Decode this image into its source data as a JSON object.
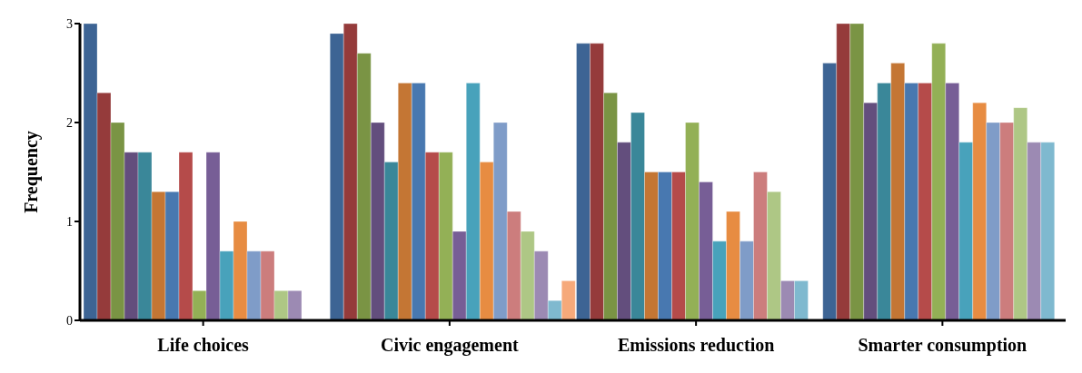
{
  "chart_data": {
    "type": "bar",
    "ylabel": "Frequency",
    "categories": [
      "Life choices",
      "Civic engagement",
      "Emissions reduction",
      "Smarter consumption"
    ],
    "ylim": [
      0,
      3
    ],
    "yticks": [
      0,
      1,
      2,
      3
    ],
    "series": [
      {
        "color": "#3d6494",
        "values": [
          3,
          2.9,
          2.8,
          2.6
        ]
      },
      {
        "color": "#953b3b",
        "values": [
          2.3,
          3,
          2.8,
          3
        ]
      },
      {
        "color": "#7a9444",
        "values": [
          2,
          2.7,
          2.3,
          3
        ]
      },
      {
        "color": "#634e7d",
        "values": [
          1.7,
          2,
          1.8,
          2.2
        ]
      },
      {
        "color": "#3a8799",
        "values": [
          1.7,
          1.6,
          2.1,
          2.4
        ]
      },
      {
        "color": "#c47634",
        "values": [
          1.3,
          2.4,
          1.5,
          2.6
        ]
      },
      {
        "color": "#4878b0",
        "values": [
          1.3,
          2.4,
          1.5,
          2.4
        ]
      },
      {
        "color": "#b54b4a",
        "values": [
          1.7,
          1.7,
          1.5,
          2.4
        ]
      },
      {
        "color": "#93b056",
        "values": [
          0.3,
          1.7,
          2,
          2.8
        ]
      },
      {
        "color": "#775e96",
        "values": [
          1.7,
          0.9,
          1.4,
          2.4
        ]
      },
      {
        "color": "#48a2bb",
        "values": [
          0.7,
          2.4,
          0.8,
          1.8
        ]
      },
      {
        "color": "#e78c42",
        "values": [
          1,
          1.6,
          1.1,
          2.2
        ]
      },
      {
        "color": "#7f9cc8",
        "values": [
          0.7,
          2,
          0.8,
          2
        ]
      },
      {
        "color": "#cc7d7d",
        "values": [
          0.7,
          1.1,
          1.5,
          2
        ]
      },
      {
        "color": "#aec785",
        "values": [
          0.3,
          0.9,
          1.3,
          2.15
        ]
      },
      {
        "color": "#9c8ab3",
        "values": [
          0.3,
          0.7,
          0.4,
          1.8
        ]
      },
      {
        "color": "#7fb9cf",
        "values": [
          null,
          0.2,
          0.4,
          1.8
        ]
      },
      {
        "color": "#f6a97a",
        "values": [
          null,
          0.4,
          null,
          null
        ]
      }
    ]
  }
}
